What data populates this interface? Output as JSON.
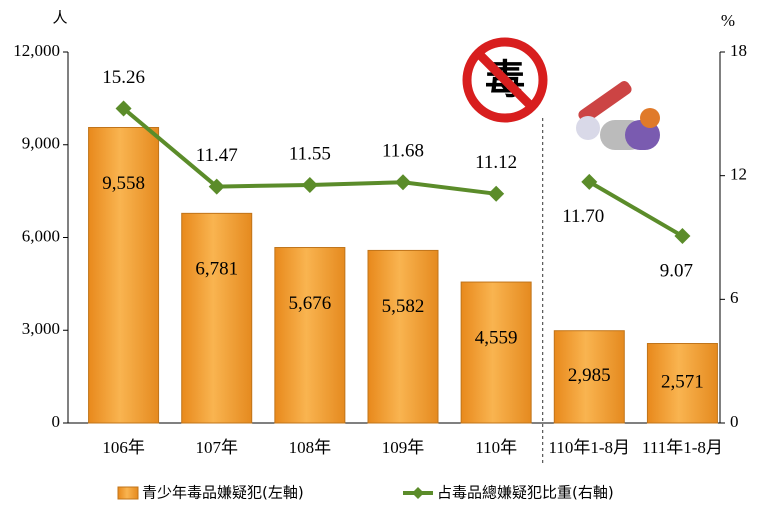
{
  "chart_data": {
    "type": "bar+line",
    "y_unit": "人",
    "y2_unit": "%",
    "categories": [
      "106年",
      "107年",
      "108年",
      "109年",
      "110年",
      "110年1-8月",
      "111年1-8月"
    ],
    "series": [
      {
        "name": "青少年毒品嫌疑犯(左軸)",
        "type": "bar",
        "color": "#f5a236",
        "values": [
          9558,
          6781,
          5676,
          5582,
          4559,
          2985,
          2571
        ],
        "value_labels": [
          "9,558",
          "6,781",
          "5,676",
          "5,582",
          "4,559",
          "2,985",
          "2,571"
        ]
      },
      {
        "name": "占毒品總嫌疑犯比重(右軸)",
        "type": "line",
        "axis": "y2",
        "color": "#5b8c2a",
        "values": [
          15.26,
          11.47,
          11.55,
          11.68,
          11.12,
          11.7,
          9.07
        ],
        "value_labels": [
          "15.26",
          "11.47",
          "11.55",
          "11.68",
          "11.12",
          "11.70",
          "9.07"
        ]
      }
    ],
    "divider_after": 4,
    "annotations": [
      "毒"
    ],
    "ylim": [
      0,
      12000
    ],
    "yticks": [
      0,
      {
        "value": 3000,
        "label": "3,000"
      },
      {
        "value": 6000,
        "label": "6,000"
      },
      {
        "value": 9000,
        "label": "9,000"
      },
      {
        "value": 12000,
        "label": "12,000"
      }
    ],
    "y2lim": [
      0,
      18
    ],
    "y2ticks": [
      0,
      6,
      12,
      18
    ],
    "legend": "bottom"
  }
}
